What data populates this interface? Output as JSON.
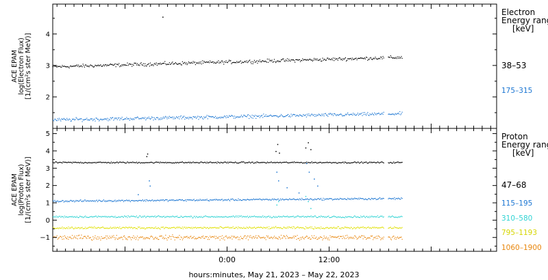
{
  "chart_data": [
    {
      "type": "scatter",
      "panel": "electron",
      "ylabel": [
        "ACE EPAM",
        "log(Electron Flux)",
        "[1/(cm²s ster MeV)]"
      ],
      "ylim": [
        1.0,
        4.95
      ],
      "yticks": [
        2,
        3,
        4
      ],
      "legend": {
        "title": [
          "Electron",
          "Energy range",
          "[keV]"
        ],
        "placement": "right",
        "entries": [
          {
            "label": "38–53",
            "color": "#000000"
          },
          {
            "label": "175–315",
            "color": "#1a75d2"
          }
        ]
      },
      "series": [
        {
          "label_index": 0,
          "color": "#000000",
          "base": 2.97,
          "trend": 0.3,
          "noise": 0.05,
          "spikes": [
            [
              -7.6,
              4.55
            ]
          ]
        },
        {
          "label_index": 1,
          "color": "#1a75d2",
          "base": 1.28,
          "trend": 0.2,
          "noise": 0.05,
          "spikes": []
        }
      ]
    },
    {
      "type": "scatter",
      "panel": "proton",
      "ylabel": [
        "ACE EPAM",
        "log(Proton Flux)",
        "[1/(cm²s ster MeV)]"
      ],
      "ylim": [
        -1.8,
        5.3
      ],
      "yticks": [
        -1,
        0,
        1,
        2,
        3,
        4,
        5
      ],
      "legend": {
        "title": [
          "Proton",
          "Energy range",
          "[keV]"
        ],
        "placement": "right",
        "entries": [
          {
            "label": "47–68",
            "color": "#000000"
          },
          {
            "label": "115–195",
            "color": "#1a75d2"
          },
          {
            "label": "310–580",
            "color": "#2ed3d3"
          },
          {
            "label": "795–1193",
            "color": "#e0e000"
          },
          {
            "label": "1060–1900",
            "color": "#e8860c"
          }
        ]
      },
      "series": [
        {
          "label_index": 0,
          "color": "#000000",
          "base": 3.35,
          "trend": 0.0,
          "noise": 0.04,
          "spikes": [
            [
              -9.5,
              3.7
            ],
            [
              -9.4,
              3.85
            ],
            [
              5.7,
              4.0
            ],
            [
              5.9,
              4.4
            ],
            [
              6.1,
              3.9
            ],
            [
              9.2,
              4.2
            ],
            [
              9.5,
              4.5
            ],
            [
              9.8,
              4.1
            ]
          ]
        },
        {
          "label_index": 1,
          "color": "#1a75d2",
          "base": 1.12,
          "trend": 0.15,
          "noise": 0.05,
          "spikes": [
            [
              -9.2,
              2.3
            ],
            [
              -9.1,
              2.0
            ],
            [
              -10.5,
              1.5
            ],
            [
              5.8,
              2.8
            ],
            [
              6.0,
              2.3
            ],
            [
              7.0,
              1.9
            ],
            [
              8.4,
              1.6
            ],
            [
              9.3,
              3.3
            ],
            [
              9.6,
              2.8
            ],
            [
              10.2,
              2.4
            ],
            [
              10.6,
              2.0
            ]
          ]
        },
        {
          "label_index": 2,
          "color": "#2ed3d3",
          "base": 0.22,
          "trend": 0.0,
          "noise": 0.05,
          "spikes": [
            [
              5.8,
              0.9
            ],
            [
              6.0,
              1.1
            ],
            [
              9.2,
              1.4
            ],
            [
              9.5,
              1.1
            ],
            [
              9.8,
              0.7
            ]
          ]
        },
        {
          "label_index": 3,
          "color": "#e0e000",
          "base": -0.42,
          "trend": 0.0,
          "noise": 0.06,
          "spikes": []
        },
        {
          "label_index": 4,
          "color": "#e8860c",
          "base": -0.98,
          "trend": 0.0,
          "noise": 0.12,
          "spikes": []
        }
      ]
    }
  ],
  "x_axis": {
    "xlabel": "hours:minutes, May 21, 2023 – May 22, 2023",
    "xlim_hours": [
      -20.5,
      31.7
    ],
    "data_range_hours": [
      -20.5,
      20.6
    ],
    "gap_hours": [
      18.4,
      18.9
    ],
    "ticks": [
      {
        "hours": 0,
        "label": "0:00"
      },
      {
        "hours": 12,
        "label": "12:00"
      }
    ],
    "minor_tick_step_hours": 1
  }
}
